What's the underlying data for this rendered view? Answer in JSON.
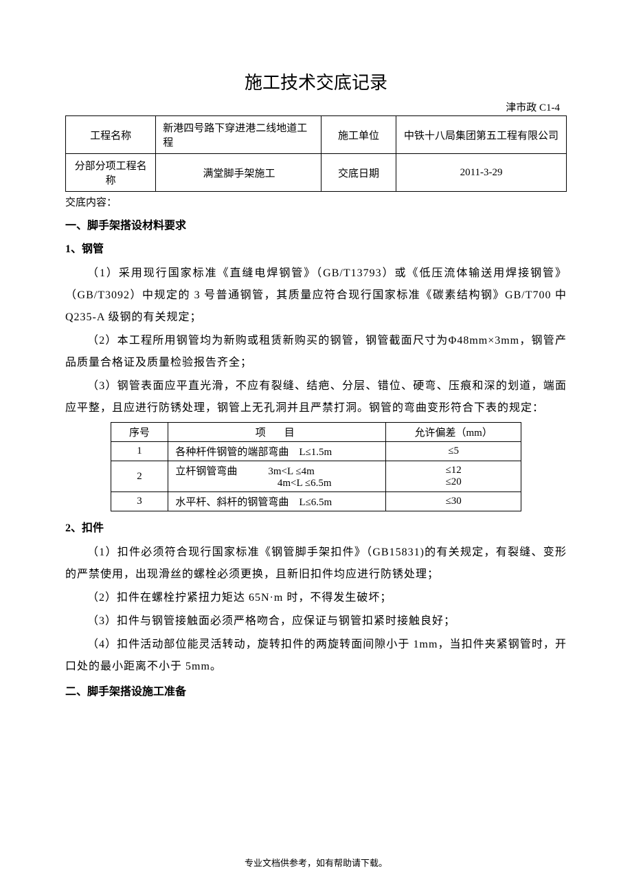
{
  "title": "施工技术交底记录",
  "docCode": "津市政 C1-4",
  "infoTable": {
    "row1": {
      "label1": "工程名称",
      "value1": "新港四号路下穿进港二线地道工程",
      "label2": "施工单位",
      "value2": "中铁十八局集团第五工程有限公司"
    },
    "row2": {
      "label1": "分部分项工程名称",
      "value1": "满堂脚手架施工",
      "label2": "交底日期",
      "value2": "2011-3-29"
    }
  },
  "contentLabel": "交底内容：",
  "section1": {
    "heading": "一、脚手架搭设材料要求",
    "sub1": {
      "heading": "1、钢管",
      "p1": "（1）采用现行国家标准《直缝电焊钢管》（GB/T13793）或《低压流体输送用焊接钢管》（GB/T3092）中规定的 3 号普通钢管，其质量应符合现行国家标准《碳素结构钢》GB/T700 中 Q235-A 级钢的有关规定；",
      "p2": "（2）本工程所用钢管均为新购或租赁新购买的钢管，钢管截面尺寸为Φ48mm×3mm，钢管产品质量合格证及质量检验报告齐全；",
      "p3": "（3）钢管表面应平直光滑，不应有裂缝、结疤、分层、错位、硬弯、压痕和深的划道，端面应平整，且应进行防锈处理，钢管上无孔洞并且严禁打洞。钢管的弯曲变形符合下表的规定："
    },
    "specTable": {
      "header": {
        "c1": "序号",
        "c2": "项　目",
        "c3": "允许偏差（mm）"
      },
      "r1": {
        "c1": "1",
        "c2": "各种杆件钢管的端部弯曲　L≤1.5m",
        "c3": "≤5"
      },
      "r2": {
        "c1": "2",
        "c2a": "立杆钢管弯曲　　　3m<L ≤4m",
        "c2b": "4m<L ≤6.5m",
        "c3a": "≤12",
        "c3b": "≤20"
      },
      "r3": {
        "c1": "3",
        "c2": "水平杆、斜杆的钢管弯曲　L≤6.5m",
        "c3": "≤30"
      }
    },
    "sub2": {
      "heading": "2、扣件",
      "p1": "（1）扣件必须符合现行国家标准《钢管脚手架扣件》（GB15831)的有关规定，有裂缝、变形的严禁使用，出现滑丝的螺栓必须更换，且新旧扣件均应进行防锈处理；",
      "p2": "（2）扣件在螺栓拧紧扭力矩达 65N·m 时，不得发生破坏；",
      "p3": "（3）扣件与钢管接触面必须严格吻合，应保证与钢管扣紧时接触良好；",
      "p4": "（4）扣件活动部位能灵活转动，旋转扣件的两旋转面间隙小于 1mm，当扣件夹紧钢管时，开口处的最小距离不小于 5mm。"
    }
  },
  "section2": {
    "heading": "二、脚手架搭设施工准备"
  },
  "footer": "专业文档供参考，如有帮助请下载。"
}
